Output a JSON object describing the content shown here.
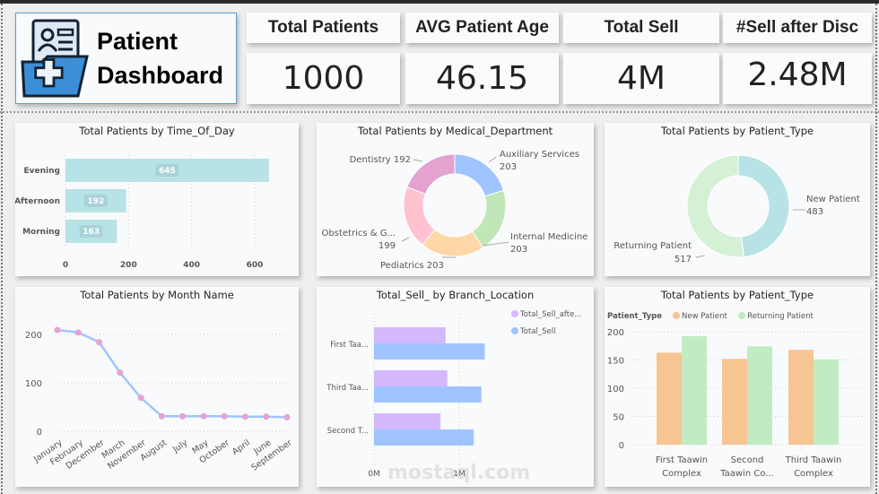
{
  "header": {
    "title_line1": "Patient",
    "title_line2": "Dashboard",
    "logo_icon": "medical-folder-icon"
  },
  "kpis": [
    {
      "label": "Total Patients",
      "value": "1000"
    },
    {
      "label": "AVG Patient Age",
      "value": "46.15"
    },
    {
      "label": "Total Sell",
      "value": "4M"
    },
    {
      "label": "#Sell after Disc",
      "value": "2.48M"
    }
  ],
  "watermark": "mostaql.com",
  "chart_data": [
    {
      "type": "bar",
      "orientation": "horizontal",
      "title": "Total Patients by Time_Of_Day",
      "categories": [
        "Evening",
        "Afternoon",
        "Morning"
      ],
      "values": [
        645,
        192,
        163
      ],
      "xticks": [
        "0",
        "200",
        "400",
        "600"
      ],
      "xlim": [
        0,
        650
      ],
      "color": "#b8e3e6",
      "grid": true
    },
    {
      "type": "pie",
      "donut": true,
      "title": "Total Patients by Medical_Department",
      "slices": [
        {
          "label": "Auxiliary Services",
          "value": 203,
          "color": "#a0c4ff"
        },
        {
          "label": "Internal Medicine",
          "value": 203,
          "color": "#c1e7b8"
        },
        {
          "label": "Pediatrics",
          "value": 203,
          "color": "#ffd6a5"
        },
        {
          "label": "Obstetrics & G...",
          "value": 199,
          "color": "#ffc2d1"
        },
        {
          "label": "Dentistry",
          "value": 192,
          "color": "#e4a3d0"
        }
      ]
    },
    {
      "type": "pie",
      "donut": true,
      "title": "Total Patients by Patient_Type",
      "slices": [
        {
          "label": "New Patient",
          "value": 483,
          "color": "#b8e3e6"
        },
        {
          "label": "Returning Patient",
          "value": 517,
          "color": "#d4f0d5"
        }
      ]
    },
    {
      "type": "line",
      "title": "Total Patients by Month Name",
      "categories": [
        "January",
        "February",
        "December",
        "March",
        "November",
        "August",
        "July",
        "May",
        "October",
        "April",
        "June",
        "September"
      ],
      "values": [
        209,
        204,
        184,
        121,
        69,
        31,
        31,
        31,
        31,
        30,
        30,
        29
      ],
      "yticks": [
        "0",
        "100",
        "200"
      ],
      "ylim": [
        0,
        230
      ],
      "line_color": "#a0c4ff",
      "marker_color": "#e4a3d0",
      "grid": true
    },
    {
      "type": "bar",
      "orientation": "horizontal",
      "title": "Total_Sell_ by Branch_Location",
      "categories": [
        "First Taa...",
        "Third Taa...",
        "Second T..."
      ],
      "series": [
        {
          "name": "Total_Sell_afte...",
          "values": [
            0.84,
            0.86,
            0.78
          ],
          "color": "#d5b9ff"
        },
        {
          "name": "Total_Sell",
          "values": [
            1.3,
            1.26,
            1.17
          ],
          "color": "#a0c4ff"
        }
      ],
      "unit": "M",
      "xticks": [
        "0M",
        "1M"
      ],
      "legend": "top-right",
      "grid": true
    },
    {
      "type": "bar",
      "title": "Total Patients by Patient_Type",
      "legend_title": "Patient_Type",
      "categories": [
        [
          "First Taawin",
          "Complex"
        ],
        [
          "Second",
          "Taawin Co..."
        ],
        [
          "Third Taawin",
          "Complex"
        ]
      ],
      "series": [
        {
          "name": "New Patient",
          "values": [
            163,
            152,
            168
          ],
          "color": "#f7c594"
        },
        {
          "name": "Returning Patient",
          "values": [
            192,
            174,
            151
          ],
          "color": "#c1ebc3"
        }
      ],
      "yticks": [
        "0",
        "50",
        "100",
        "150",
        "200"
      ],
      "ylim": [
        0,
        200
      ],
      "legend": "top-left",
      "grid": true
    }
  ]
}
